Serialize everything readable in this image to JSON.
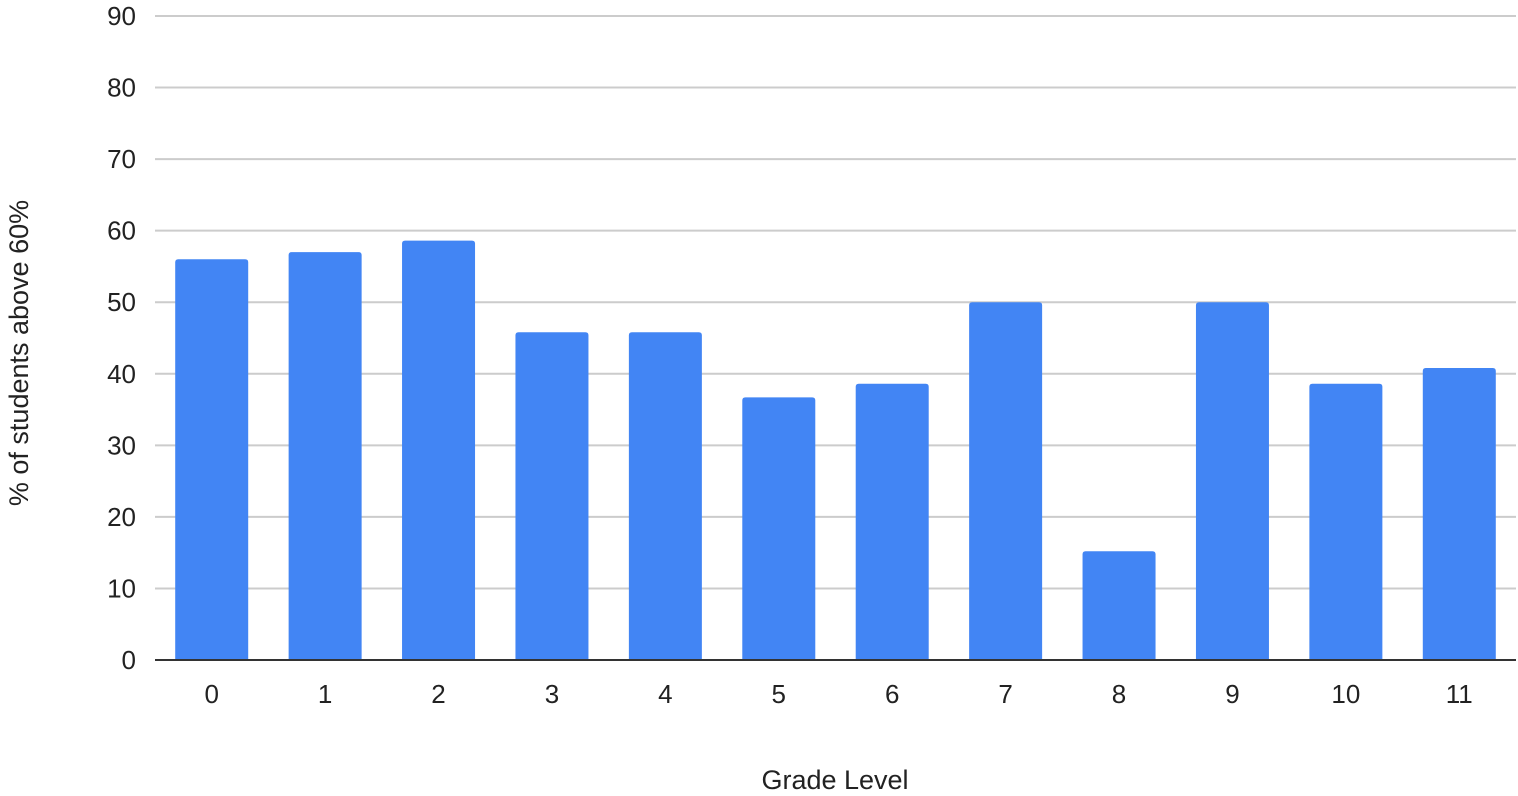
{
  "chart_data": {
    "type": "bar",
    "title": "",
    "xlabel": "Grade Level",
    "ylabel": "% of students above 60%",
    "categories": [
      "0",
      "1",
      "2",
      "3",
      "4",
      "5",
      "6",
      "7",
      "8",
      "9",
      "10",
      "11"
    ],
    "values": [
      56,
      57,
      58.6,
      45.8,
      45.8,
      36.7,
      38.6,
      50,
      15.2,
      50,
      38.6,
      40.8
    ],
    "ylim": [
      0,
      90
    ],
    "yticks": [
      0,
      10,
      20,
      30,
      40,
      50,
      60,
      70,
      80,
      90
    ],
    "grid": true,
    "legend": "none",
    "colors": {
      "bar": "#4285f4",
      "grid": "#cccccc",
      "baseline": "#333333",
      "text": "#222222"
    }
  }
}
